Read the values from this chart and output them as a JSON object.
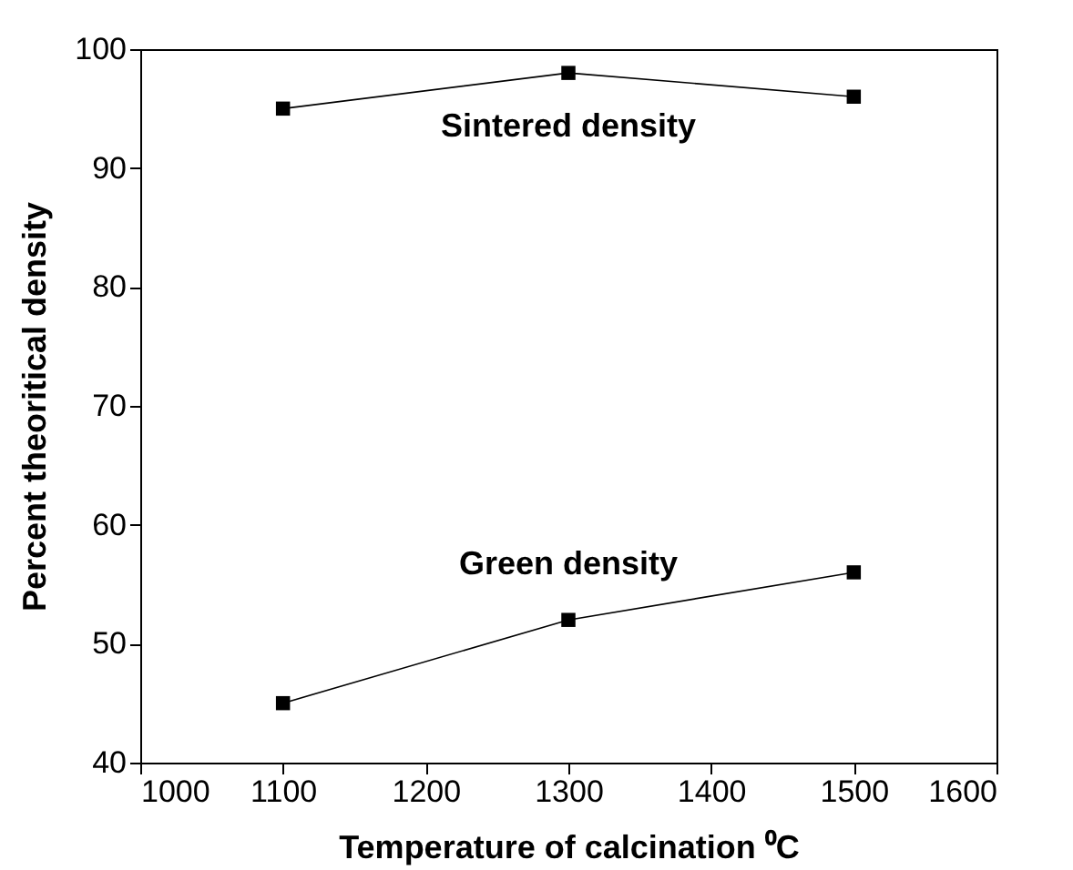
{
  "chart_data": {
    "type": "line",
    "xlabel": "Temperature of calcination ⁰C",
    "ylabel": "Percent theoritical density",
    "x": [
      1100,
      1300,
      1500
    ],
    "series": [
      {
        "name": "Sintered density",
        "color": "#000000",
        "values": [
          95,
          98,
          96
        ]
      },
      {
        "name": "Green density",
        "color": "#000000",
        "values": [
          45,
          52,
          56
        ]
      }
    ],
    "xlim": [
      1000,
      1600
    ],
    "xticks": [
      1000,
      1100,
      1200,
      1300,
      1400,
      1500,
      1600
    ],
    "ylim": [
      40,
      100
    ],
    "yticks": [
      40,
      50,
      60,
      70,
      80,
      90,
      100
    ],
    "grid": false,
    "legend": false,
    "marker": "square",
    "line_style": "solid"
  }
}
